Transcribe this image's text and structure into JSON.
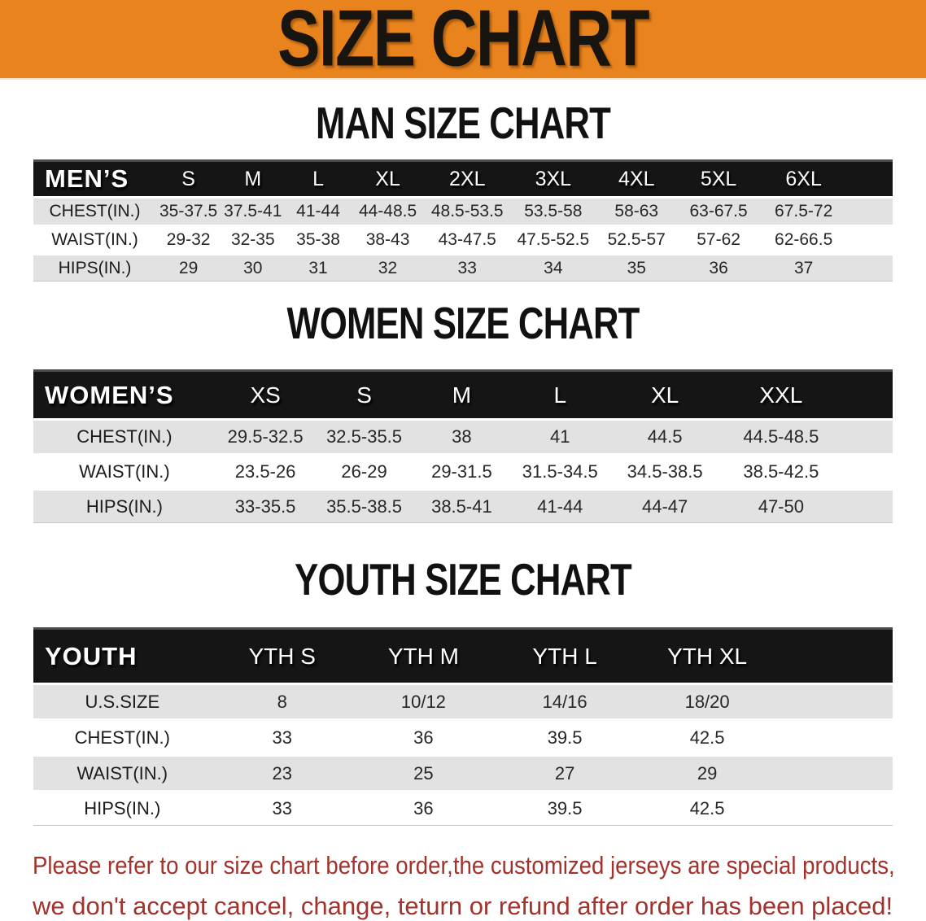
{
  "banner": {
    "title": "SIZE CHART"
  },
  "sections": [
    {
      "heading": "MAN SIZE CHART",
      "table": {
        "corner_label": "MEN’S",
        "columns": [
          "S",
          "M",
          "L",
          "XL",
          "2XL",
          "3XL",
          "4XL",
          "5XL",
          "6XL"
        ],
        "rows": [
          {
            "label": "CHEST(IN.)",
            "values": [
              "35-37.5",
              "37.5-41",
              "41-44",
              "44-48.5",
              "48.5-53.5",
              "53.5-58",
              "58-63",
              "63-67.5",
              "67.5-72"
            ]
          },
          {
            "label": "WAIST(IN.)",
            "values": [
              "29-32",
              "32-35",
              "35-38",
              "38-43",
              "43-47.5",
              "47.5-52.5",
              "52.5-57",
              "57-62",
              "62-66.5"
            ]
          },
          {
            "label": "HIPS(IN.)",
            "values": [
              "29",
              "30",
              "31",
              "32",
              "33",
              "34",
              "35",
              "36",
              "37"
            ]
          }
        ]
      }
    },
    {
      "heading": "WOMEN SIZE CHART",
      "table": {
        "corner_label": "WOMEN’S",
        "columns": [
          "XS",
          "S",
          "M",
          "L",
          "XL",
          "XXL"
        ],
        "rows": [
          {
            "label": "CHEST(IN.)",
            "values": [
              "29.5-32.5",
              "32.5-35.5",
              "38",
              "41",
              "44.5",
              "44.5-48.5"
            ]
          },
          {
            "label": "WAIST(IN.)",
            "values": [
              "23.5-26",
              "26-29",
              "29-31.5",
              "31.5-34.5",
              "34.5-38.5",
              "38.5-42.5"
            ]
          },
          {
            "label": "HIPS(IN.)",
            "values": [
              "33-35.5",
              "35.5-38.5",
              "38.5-41",
              "41-44",
              "44-47",
              "47-50"
            ]
          }
        ]
      }
    },
    {
      "heading": "YOUTH SIZE CHART",
      "table": {
        "corner_label": "YOUTH",
        "columns": [
          "YTH S",
          "YTH M",
          "YTH L",
          "YTH XL"
        ],
        "rows": [
          {
            "label": "U.S.SIZE",
            "values": [
              "8",
              "10/12",
              "14/16",
              "18/20"
            ]
          },
          {
            "label": "CHEST(IN.)",
            "values": [
              "33",
              "36",
              "39.5",
              "42.5"
            ]
          },
          {
            "label": "WAIST(IN.)",
            "values": [
              "23",
              "25",
              "27",
              "29"
            ]
          },
          {
            "label": "HIPS(IN.)",
            "values": [
              "33",
              "36",
              "39.5",
              "42.5"
            ]
          }
        ]
      }
    }
  ],
  "footer": {
    "line1": "Please refer to our size chart before order,the customized jerseys are special products,",
    "line2": "we don't accept cancel, change, teturn or refund after order has been placed!"
  },
  "colors": {
    "banner_bg": "#E8831D",
    "banner_text": "#181511",
    "header_bg": "#151515",
    "header_text": "#FFFFFF",
    "stripe": "#E2E2E2",
    "row_text": "#272727",
    "footer_text": "#A2322B"
  }
}
